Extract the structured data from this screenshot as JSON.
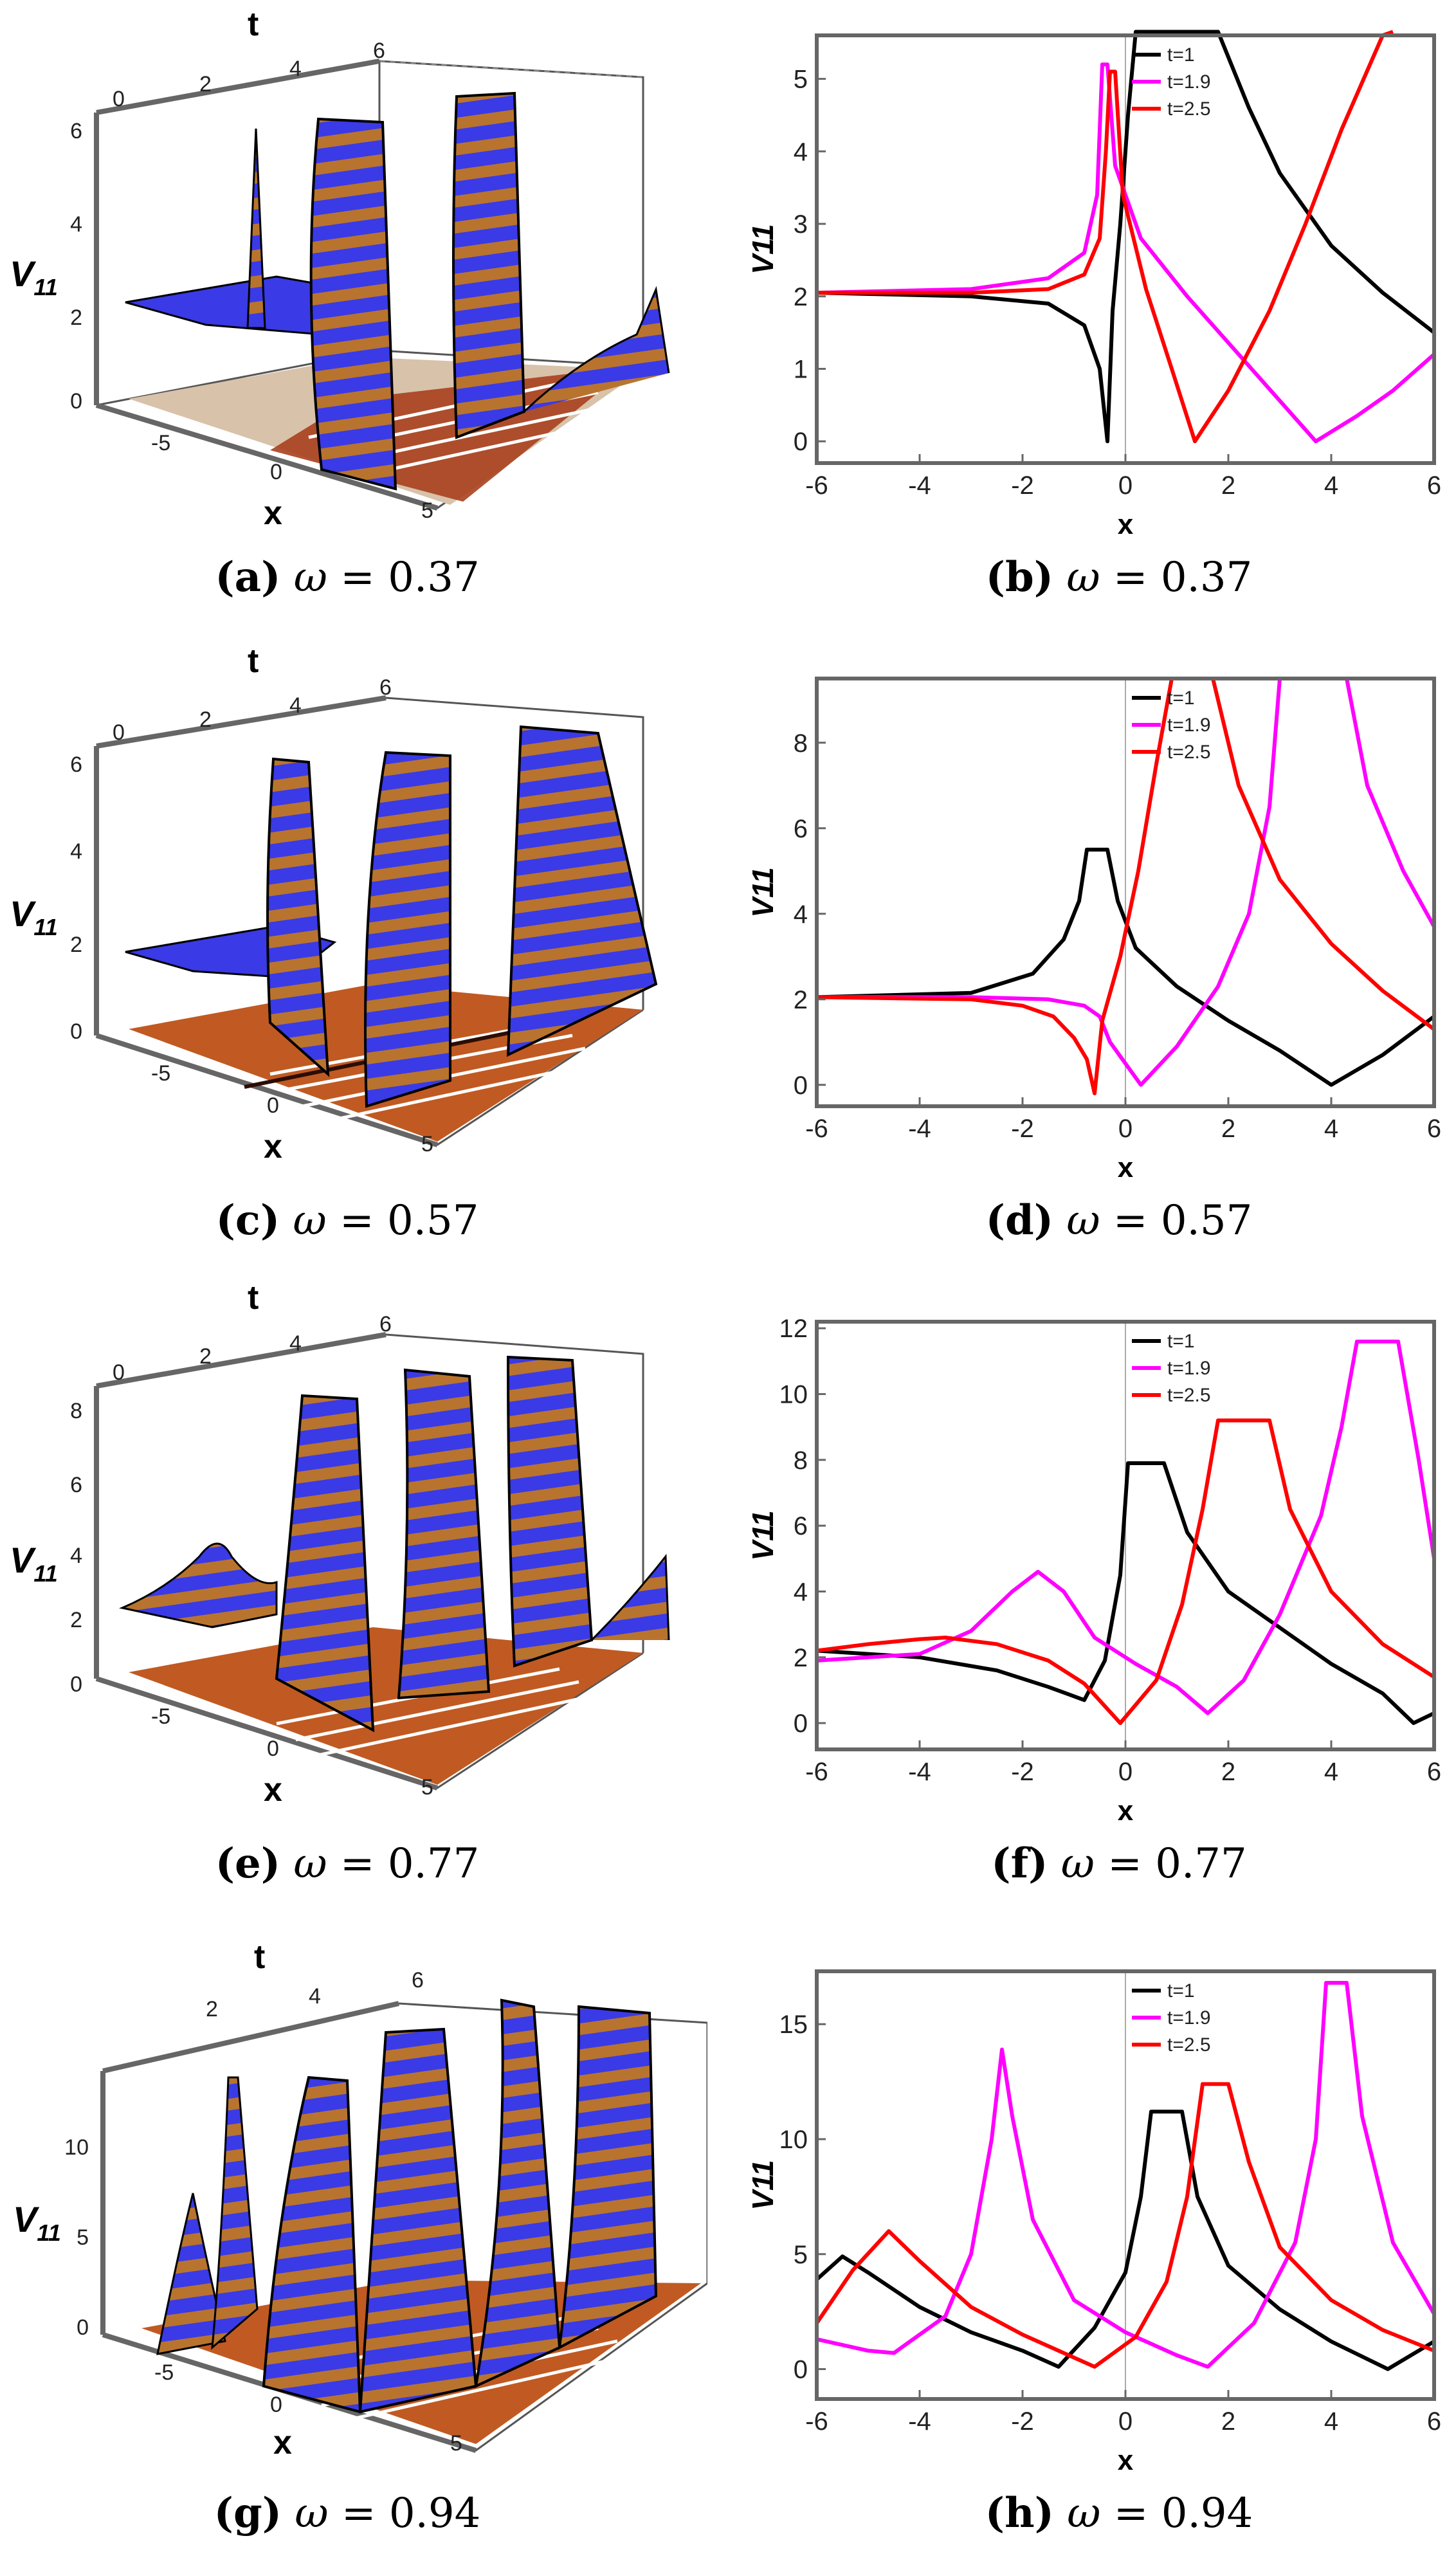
{
  "captions": [
    {
      "letter": "(a)",
      "symbol": "ω",
      "value": "= 0.37"
    },
    {
      "letter": "(b)",
      "symbol": "ω",
      "value": "= 0.37"
    },
    {
      "letter": "(c)",
      "symbol": "ω",
      "value": "= 0.57"
    },
    {
      "letter": "(d)",
      "symbol": "ω",
      "value": "= 0.57"
    },
    {
      "letter": "(e)",
      "symbol": "ω",
      "value": "= 0.77"
    },
    {
      "letter": "(f)",
      "symbol": "ω",
      "value": "= 0.77"
    },
    {
      "letter": "(g)",
      "symbol": "ω",
      "value": "= 0.94"
    },
    {
      "letter": "(h)",
      "symbol": "ω",
      "value": "= 0.94"
    }
  ],
  "colors": {
    "t1": "#000000",
    "t19": "#ff00ff",
    "t25": "#ff0000",
    "surface_blue": "#3a3ae6",
    "surface_orange": "#e0872e",
    "contour_dark": "#8a2a10"
  },
  "chart_data": [
    {
      "id": "a",
      "type": "surface3d",
      "omega": 0.37,
      "title": "",
      "xlabel": "x",
      "ylabel": "t",
      "zlabel": "V11",
      "x_ticks": [
        "-5",
        "0",
        "5"
      ],
      "t_ticks": [
        "0",
        "2",
        "4",
        "6"
      ],
      "z_ticks": [
        "0",
        "2",
        "4",
        "6"
      ]
    },
    {
      "id": "b",
      "type": "line",
      "omega": 0.37,
      "xlabel": "x",
      "ylabel": "V11",
      "xlim": [
        -6,
        6
      ],
      "ylim": [
        -0.3,
        5.6
      ],
      "x_ticks": [
        -6,
        -4,
        -2,
        0,
        2,
        4,
        6
      ],
      "y_ticks": [
        0,
        1,
        2,
        3,
        4,
        5
      ],
      "legend": [
        "t=1",
        "t=1.9",
        "t=2.5"
      ],
      "series": [
        {
          "name": "t=1",
          "color": "#000000",
          "points": [
            [
              -6,
              2.05
            ],
            [
              -3,
              2.0
            ],
            [
              -1.5,
              1.9
            ],
            [
              -0.8,
              1.6
            ],
            [
              -0.5,
              1.0
            ],
            [
              -0.35,
              0.0
            ],
            [
              -0.25,
              1.8
            ],
            [
              -0.1,
              3.0
            ],
            [
              0.05,
              4.5
            ],
            [
              0.2,
              6.0
            ],
            [
              1.8,
              6.0
            ],
            [
              2.4,
              4.6
            ],
            [
              3,
              3.7
            ],
            [
              4,
              2.7
            ],
            [
              5,
              2.05
            ],
            [
              6,
              1.5
            ]
          ]
        },
        {
          "name": "t=1.9",
          "color": "#ff00ff",
          "points": [
            [
              -6,
              2.05
            ],
            [
              -3,
              2.1
            ],
            [
              -1.5,
              2.25
            ],
            [
              -0.8,
              2.6
            ],
            [
              -0.55,
              3.4
            ],
            [
              -0.45,
              5.2
            ],
            [
              -0.35,
              5.2
            ],
            [
              -0.2,
              3.8
            ],
            [
              0.3,
              2.8
            ],
            [
              1.2,
              2.0
            ],
            [
              2.2,
              1.2
            ],
            [
              3.2,
              0.4
            ],
            [
              3.7,
              0.0
            ],
            [
              4.5,
              0.35
            ],
            [
              5.2,
              0.7
            ],
            [
              6,
              1.2
            ]
          ]
        },
        {
          "name": "t=2.5",
          "color": "#ff0000",
          "points": [
            [
              -6,
              2.05
            ],
            [
              -3,
              2.05
            ],
            [
              -1.5,
              2.1
            ],
            [
              -0.8,
              2.3
            ],
            [
              -0.5,
              2.8
            ],
            [
              -0.38,
              4.0
            ],
            [
              -0.3,
              5.1
            ],
            [
              -0.2,
              5.1
            ],
            [
              -0.05,
              3.4
            ],
            [
              0.4,
              2.1
            ],
            [
              0.9,
              1.0
            ],
            [
              1.35,
              0.0
            ],
            [
              2,
              0.7
            ],
            [
              2.8,
              1.8
            ],
            [
              3.5,
              3.0
            ],
            [
              4.2,
              4.3
            ],
            [
              5,
              5.6
            ],
            [
              5.2,
              6.0
            ]
          ]
        }
      ]
    },
    {
      "id": "c",
      "type": "surface3d",
      "omega": 0.57,
      "xlabel": "x",
      "ylabel": "t",
      "zlabel": "V11",
      "x_ticks": [
        "-5",
        "0",
        "5"
      ],
      "t_ticks": [
        "0",
        "2",
        "4",
        "6"
      ],
      "z_ticks": [
        "0",
        "2",
        "4",
        "6"
      ]
    },
    {
      "id": "d",
      "type": "line",
      "omega": 0.57,
      "xlabel": "x",
      "ylabel": "V11",
      "xlim": [
        -6,
        6
      ],
      "ylim": [
        -0.5,
        9.5
      ],
      "x_ticks": [
        -6,
        -4,
        -2,
        0,
        2,
        4,
        6
      ],
      "y_ticks": [
        0,
        2,
        4,
        6,
        8
      ],
      "legend": [
        "t=1",
        "t=1.9",
        "t=2.5"
      ],
      "series": [
        {
          "name": "t=1",
          "color": "#000000",
          "points": [
            [
              -6,
              2.05
            ],
            [
              -3,
              2.15
            ],
            [
              -1.8,
              2.6
            ],
            [
              -1.2,
              3.4
            ],
            [
              -0.9,
              4.3
            ],
            [
              -0.75,
              5.5
            ],
            [
              -0.35,
              5.5
            ],
            [
              -0.15,
              4.3
            ],
            [
              0.2,
              3.2
            ],
            [
              1,
              2.3
            ],
            [
              2,
              1.5
            ],
            [
              3,
              0.8
            ],
            [
              4,
              0.0
            ],
            [
              5,
              0.7
            ],
            [
              6,
              1.6
            ]
          ]
        },
        {
          "name": "t=1.9",
          "color": "#ff00ff",
          "points": [
            [
              -6,
              2.05
            ],
            [
              -3,
              2.05
            ],
            [
              -1.5,
              2.0
            ],
            [
              -0.8,
              1.85
            ],
            [
              -0.5,
              1.6
            ],
            [
              -0.3,
              1.0
            ],
            [
              0.3,
              0.0
            ],
            [
              1,
              0.9
            ],
            [
              1.8,
              2.3
            ],
            [
              2.4,
              4.0
            ],
            [
              2.8,
              6.5
            ],
            [
              3,
              9.5
            ],
            [
              4.3,
              9.5
            ],
            [
              4.7,
              7.0
            ],
            [
              5.4,
              5.0
            ],
            [
              6,
              3.7
            ]
          ]
        },
        {
          "name": "t=2.5",
          "color": "#ff0000",
          "points": [
            [
              -6,
              2.05
            ],
            [
              -3,
              2.0
            ],
            [
              -2,
              1.85
            ],
            [
              -1.4,
              1.6
            ],
            [
              -1,
              1.1
            ],
            [
              -0.75,
              0.6
            ],
            [
              -0.6,
              -0.2
            ],
            [
              -0.45,
              1.5
            ],
            [
              -0.1,
              3.0
            ],
            [
              0.25,
              5.0
            ],
            [
              0.6,
              7.5
            ],
            [
              0.9,
              9.5
            ],
            [
              1.7,
              9.5
            ],
            [
              2.2,
              7.0
            ],
            [
              3,
              4.8
            ],
            [
              4,
              3.3
            ],
            [
              5,
              2.2
            ],
            [
              6,
              1.3
            ]
          ]
        }
      ]
    },
    {
      "id": "e",
      "type": "surface3d",
      "omega": 0.77,
      "xlabel": "x",
      "ylabel": "t",
      "zlabel": "V11",
      "x_ticks": [
        "-5",
        "0",
        "5"
      ],
      "t_ticks": [
        "0",
        "2",
        "4",
        "6"
      ],
      "z_ticks": [
        "0",
        "2",
        "4",
        "6",
        "8"
      ]
    },
    {
      "id": "f",
      "type": "line",
      "omega": 0.77,
      "xlabel": "x",
      "ylabel": "V11",
      "xlim": [
        -6,
        6
      ],
      "ylim": [
        -0.8,
        12.2
      ],
      "x_ticks": [
        -6,
        -4,
        -2,
        0,
        2,
        4,
        6
      ],
      "y_ticks": [
        0,
        2,
        4,
        6,
        8,
        10,
        12
      ],
      "legend": [
        "t=1",
        "t=1.9",
        "t=2.5"
      ],
      "series": [
        {
          "name": "t=1",
          "color": "#000000",
          "points": [
            [
              -6,
              2.2
            ],
            [
              -4,
              2.0
            ],
            [
              -2.5,
              1.6
            ],
            [
              -1.5,
              1.1
            ],
            [
              -0.8,
              0.7
            ],
            [
              -0.4,
              1.9
            ],
            [
              -0.1,
              4.5
            ],
            [
              0.05,
              7.9
            ],
            [
              0.75,
              7.9
            ],
            [
              1.2,
              5.8
            ],
            [
              2,
              4.0
            ],
            [
              3,
              2.9
            ],
            [
              4,
              1.8
            ],
            [
              5,
              0.9
            ],
            [
              5.6,
              0.0
            ],
            [
              6,
              0.3
            ]
          ]
        },
        {
          "name": "t=1.9",
          "color": "#ff00ff",
          "points": [
            [
              -6,
              1.9
            ],
            [
              -4,
              2.1
            ],
            [
              -3,
              2.8
            ],
            [
              -2.2,
              4.0
            ],
            [
              -1.7,
              4.6
            ],
            [
              -1.2,
              4.0
            ],
            [
              -0.6,
              2.6
            ],
            [
              0.2,
              1.8
            ],
            [
              1,
              1.1
            ],
            [
              1.6,
              0.3
            ],
            [
              2.3,
              1.3
            ],
            [
              3,
              3.3
            ],
            [
              3.8,
              6.3
            ],
            [
              4.2,
              9.0
            ],
            [
              4.5,
              11.6
            ],
            [
              5.3,
              11.6
            ],
            [
              5.7,
              8.0
            ],
            [
              6,
              5.0
            ]
          ]
        },
        {
          "name": "t=2.5",
          "color": "#ff0000",
          "points": [
            [
              -6,
              2.2
            ],
            [
              -5,
              2.4
            ],
            [
              -4,
              2.55
            ],
            [
              -3.5,
              2.6
            ],
            [
              -2.5,
              2.4
            ],
            [
              -1.5,
              1.9
            ],
            [
              -0.8,
              1.2
            ],
            [
              -0.1,
              0.0
            ],
            [
              0.6,
              1.3
            ],
            [
              1.1,
              3.6
            ],
            [
              1.5,
              6.5
            ],
            [
              1.8,
              9.2
            ],
            [
              2.8,
              9.2
            ],
            [
              3.2,
              6.5
            ],
            [
              4,
              4.0
            ],
            [
              5,
              2.4
            ],
            [
              6,
              1.4
            ]
          ]
        }
      ]
    },
    {
      "id": "g",
      "type": "surface3d",
      "omega": 0.94,
      "xlabel": "x",
      "ylabel": "t",
      "zlabel": "V11",
      "x_ticks": [
        "-5",
        "0",
        "5"
      ],
      "t_ticks": [
        "2",
        "4",
        "6"
      ],
      "z_ticks": [
        "0",
        "5",
        "10"
      ]
    },
    {
      "id": "h",
      "type": "line",
      "omega": 0.94,
      "xlabel": "x",
      "ylabel": "V11",
      "xlim": [
        -6,
        6
      ],
      "ylim": [
        -1.3,
        17.3
      ],
      "x_ticks": [
        -6,
        -4,
        -2,
        0,
        2,
        4,
        6
      ],
      "y_ticks": [
        0,
        5,
        10,
        15
      ],
      "legend": [
        "t=1",
        "t=1.9",
        "t=2.5"
      ],
      "series": [
        {
          "name": "t=1",
          "color": "#000000",
          "points": [
            [
              -6,
              3.9
            ],
            [
              -5.5,
              4.9
            ],
            [
              -5,
              4.2
            ],
            [
              -4,
              2.7
            ],
            [
              -3,
              1.6
            ],
            [
              -2,
              0.8
            ],
            [
              -1.3,
              0.1
            ],
            [
              -0.6,
              1.8
            ],
            [
              0,
              4.2
            ],
            [
              0.3,
              7.5
            ],
            [
              0.5,
              11.2
            ],
            [
              1.1,
              11.2
            ],
            [
              1.4,
              7.5
            ],
            [
              2,
              4.5
            ],
            [
              3,
              2.6
            ],
            [
              4,
              1.2
            ],
            [
              5.1,
              0.0
            ],
            [
              6,
              1.2
            ]
          ]
        },
        {
          "name": "t=1.9",
          "color": "#ff00ff",
          "points": [
            [
              -6,
              1.3
            ],
            [
              -5,
              0.8
            ],
            [
              -4.5,
              0.7
            ],
            [
              -3.5,
              2.3
            ],
            [
              -3,
              5.0
            ],
            [
              -2.6,
              10.0
            ],
            [
              -2.4,
              13.9
            ],
            [
              -2.2,
              11.0
            ],
            [
              -1.8,
              6.5
            ],
            [
              -1,
              3.0
            ],
            [
              0,
              1.6
            ],
            [
              1,
              0.6
            ],
            [
              1.6,
              0.1
            ],
            [
              2.5,
              2.0
            ],
            [
              3.3,
              5.5
            ],
            [
              3.7,
              10.0
            ],
            [
              3.9,
              16.8
            ],
            [
              4.3,
              16.8
            ],
            [
              4.6,
              11.0
            ],
            [
              5.2,
              5.5
            ],
            [
              6,
              2.4
            ]
          ]
        },
        {
          "name": "t=2.5",
          "color": "#ff0000",
          "points": [
            [
              -6,
              2.0
            ],
            [
              -5.3,
              4.3
            ],
            [
              -4.6,
              6.0
            ],
            [
              -4,
              4.7
            ],
            [
              -3,
              2.7
            ],
            [
              -2,
              1.5
            ],
            [
              -1,
              0.5
            ],
            [
              -0.6,
              0.1
            ],
            [
              0.2,
              1.4
            ],
            [
              0.8,
              3.8
            ],
            [
              1.2,
              7.5
            ],
            [
              1.5,
              12.4
            ],
            [
              2,
              12.4
            ],
            [
              2.4,
              9.0
            ],
            [
              3,
              5.3
            ],
            [
              4,
              3.0
            ],
            [
              5,
              1.7
            ],
            [
              6,
              0.8
            ]
          ]
        }
      ]
    }
  ]
}
